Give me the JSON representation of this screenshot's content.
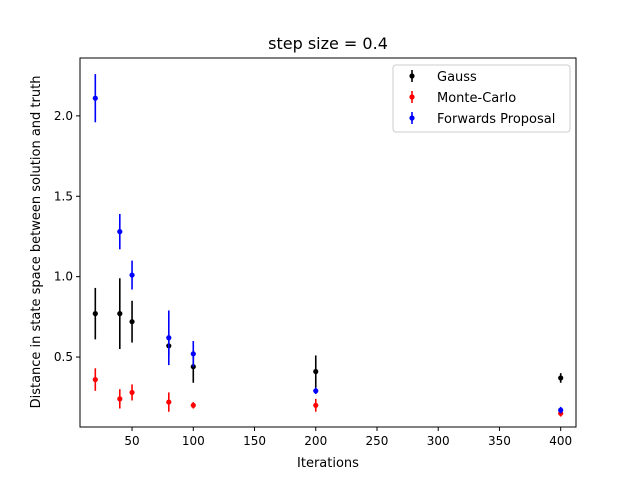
{
  "chart_data": {
    "type": "scatter",
    "title": "step size = 0.4",
    "xlabel": "Iterations",
    "ylabel": "Distance in state space between solution and truth",
    "xlim": [
      0,
      420
    ],
    "ylim": [
      0.05,
      2.35
    ],
    "xticks": [
      50,
      100,
      150,
      200,
      250,
      300,
      350,
      400
    ],
    "yticks": [
      0.5,
      1.0,
      1.5,
      2.0
    ],
    "ytick_labels": [
      "0.5",
      "1.0",
      "1.5",
      "2.0"
    ],
    "grid": false,
    "legend_position": "top-right",
    "series": [
      {
        "name": "Gauss",
        "color": "#000000",
        "x": [
          20,
          40,
          50,
          80,
          100,
          200,
          400
        ],
        "y": [
          0.77,
          0.77,
          0.72,
          0.57,
          0.44,
          0.41,
          0.37
        ],
        "err": [
          0.16,
          0.22,
          0.13,
          0.06,
          0.1,
          0.1,
          0.03
        ]
      },
      {
        "name": "Monte-Carlo",
        "color": "#ff0000",
        "x": [
          20,
          40,
          50,
          80,
          100,
          200,
          400
        ],
        "y": [
          0.36,
          0.24,
          0.28,
          0.22,
          0.2,
          0.2,
          0.15
        ],
        "err": [
          0.07,
          0.06,
          0.05,
          0.06,
          0.02,
          0.04,
          0.02
        ]
      },
      {
        "name": "Forwards Proposal",
        "color": "#0000ff",
        "x": [
          20,
          40,
          50,
          80,
          100,
          200,
          400
        ],
        "y": [
          2.11,
          1.28,
          1.01,
          0.62,
          0.52,
          0.29,
          0.17
        ],
        "err": [
          0.15,
          0.11,
          0.09,
          0.17,
          0.08,
          0.02,
          0.02
        ]
      }
    ]
  }
}
